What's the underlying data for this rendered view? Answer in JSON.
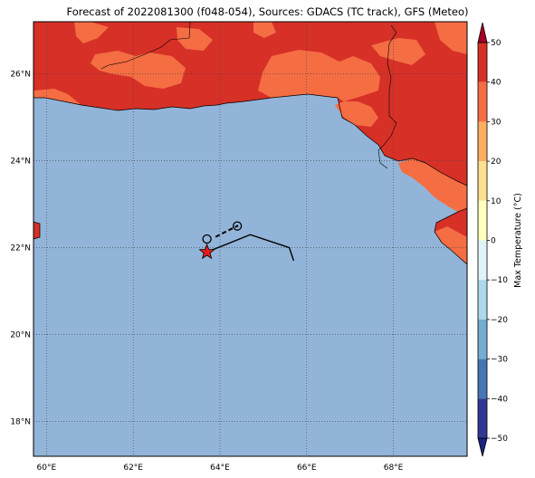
{
  "title": "Forecast of 2022081300 (f048-054), Sources: GDACS (TC track), GFS (Meteo)",
  "map": {
    "lon_range": [
      59.7,
      69.7
    ],
    "lat_range": [
      17.2,
      27.2
    ],
    "x_ticks": [
      60,
      62,
      64,
      66,
      68
    ],
    "y_ticks": [
      18,
      20,
      22,
      24,
      26
    ],
    "x_tick_labels": [
      "60°E",
      "62°E",
      "64°E",
      "66°E",
      "68°E"
    ],
    "y_tick_labels": [
      "18°N",
      "20°N",
      "22°N",
      "24°N",
      "26°N"
    ],
    "grid": true,
    "sea_color": "#92b4d8",
    "land_color_30_40": "#d73027",
    "land_color_20_30": "#f46d43",
    "track_points": [
      [
        63.7,
        21.9
      ],
      [
        64.7,
        22.3
      ],
      [
        65.6,
        22.0
      ],
      [
        65.7,
        21.7
      ]
    ],
    "forecast_track": [
      [
        63.9,
        22.25
      ],
      [
        64.4,
        22.5
      ]
    ],
    "storm_position": [
      63.7,
      21.9
    ],
    "storm_marker_color": "#e41a1c",
    "past_positions": [
      [
        63.7,
        22.2
      ],
      [
        64.4,
        22.5
      ]
    ]
  },
  "colorbar": {
    "label": "Max Temperature (°C)",
    "ticks": [
      50,
      40,
      30,
      20,
      10,
      0,
      -10,
      -20,
      -30,
      -40,
      -50
    ],
    "tick_labels": [
      "50",
      "40",
      "30",
      "20",
      "10",
      "0",
      "−10",
      "−20",
      "−30",
      "−40",
      "−50"
    ],
    "colors": [
      "#a50026",
      "#d73027",
      "#f46d43",
      "#fdae61",
      "#fee090",
      "#ffffbf",
      "#e0f3f8",
      "#abd9e9",
      "#74add1",
      "#4575b4",
      "#313695"
    ],
    "top_color": "#a50026",
    "bottom_color": "#1a237e"
  }
}
